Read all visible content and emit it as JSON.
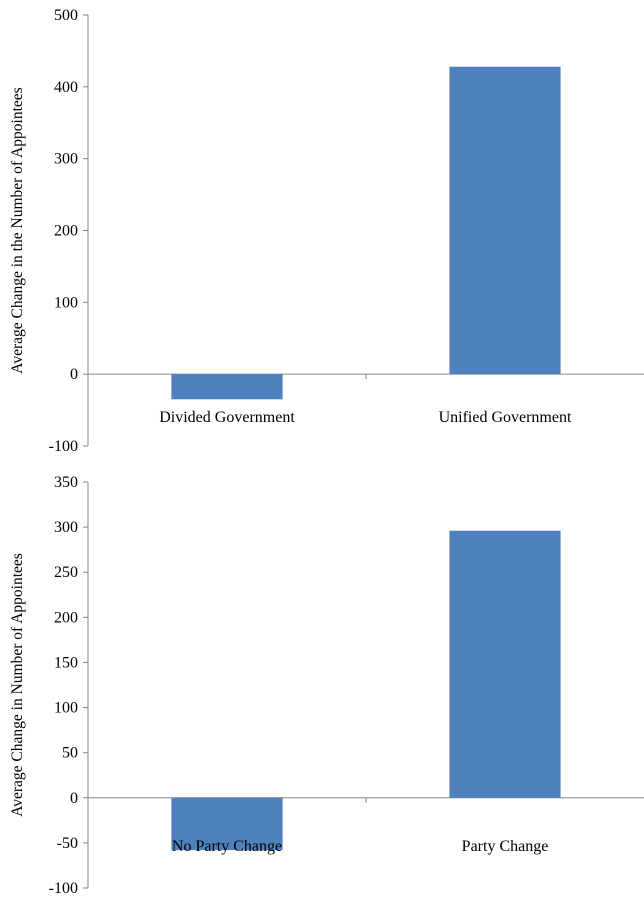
{
  "chart_data": [
    {
      "type": "bar",
      "categories": [
        "Divided Government",
        "Unified Government"
      ],
      "values": [
        -35,
        428
      ],
      "ylabel": "Average Change in the Number of Appointees",
      "xlabel": "",
      "ylim": [
        -100,
        500
      ],
      "yticks": [
        "-100",
        "0",
        "100",
        "200",
        "300",
        "400",
        "500"
      ],
      "bar_color": "#4f81bd",
      "grid": false
    },
    {
      "type": "bar",
      "categories": [
        "No Party Change",
        "Party Change"
      ],
      "values": [
        -58,
        296
      ],
      "ylabel": "Average Change in Number of Appointees",
      "xlabel": "",
      "ylim": [
        -100,
        350
      ],
      "yticks": [
        "-100",
        "-50",
        "0",
        "50",
        "100",
        "150",
        "200",
        "250",
        "300",
        "350"
      ],
      "bar_color": "#4f81bd",
      "grid": false
    }
  ]
}
